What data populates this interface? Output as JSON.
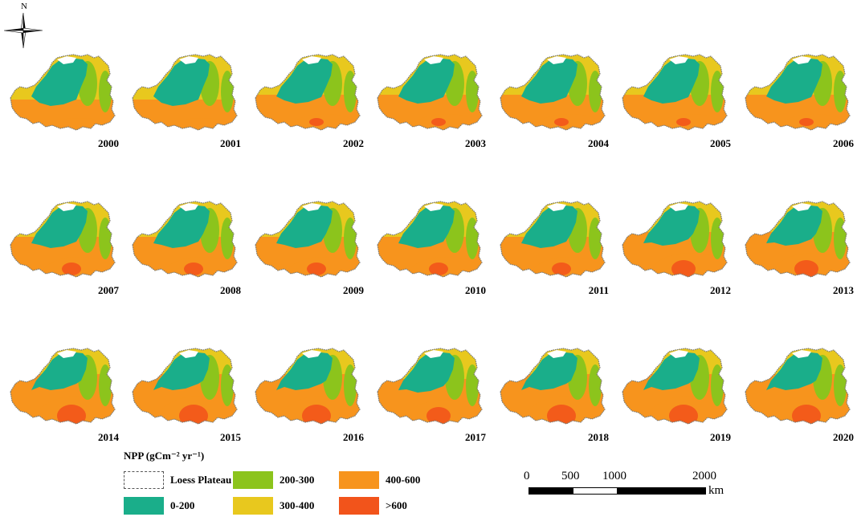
{
  "compass": {
    "north_label": "N"
  },
  "maps": [
    {
      "year": "2000",
      "level": 0
    },
    {
      "year": "2001",
      "level": 0
    },
    {
      "year": "2002",
      "level": 1
    },
    {
      "year": "2003",
      "level": 1
    },
    {
      "year": "2004",
      "level": 1
    },
    {
      "year": "2005",
      "level": 1
    },
    {
      "year": "2006",
      "level": 1
    },
    {
      "year": "2007",
      "level": 2
    },
    {
      "year": "2008",
      "level": 2
    },
    {
      "year": "2009",
      "level": 2
    },
    {
      "year": "2010",
      "level": 2
    },
    {
      "year": "2011",
      "level": 2
    },
    {
      "year": "2012",
      "level": 3
    },
    {
      "year": "2013",
      "level": 3
    },
    {
      "year": "2014",
      "level": 4
    },
    {
      "year": "2015",
      "level": 4
    },
    {
      "year": "2016",
      "level": 4
    },
    {
      "year": "2017",
      "level": 3
    },
    {
      "year": "2018",
      "level": 4
    },
    {
      "year": "2019",
      "level": 4
    },
    {
      "year": "2020",
      "level": 4
    }
  ],
  "legend": {
    "title": "NPP (gCm⁻² yr⁻¹)",
    "items": [
      {
        "label": "Loess Plateau",
        "color": "#ffffff",
        "outline": "#555555"
      },
      {
        "label": "200-300",
        "color": "#8cc41c"
      },
      {
        "label": "400-600",
        "color": "#f7941d"
      },
      {
        "label": "0-200",
        "color": "#1aae8a"
      },
      {
        "label": "300-400",
        "color": "#e8c81e"
      },
      {
        "label": ">600",
        "color": "#f2541b"
      }
    ]
  },
  "scale_bar": {
    "ticks": [
      "0",
      "500",
      "1000",
      "2000"
    ],
    "unit": "km"
  }
}
